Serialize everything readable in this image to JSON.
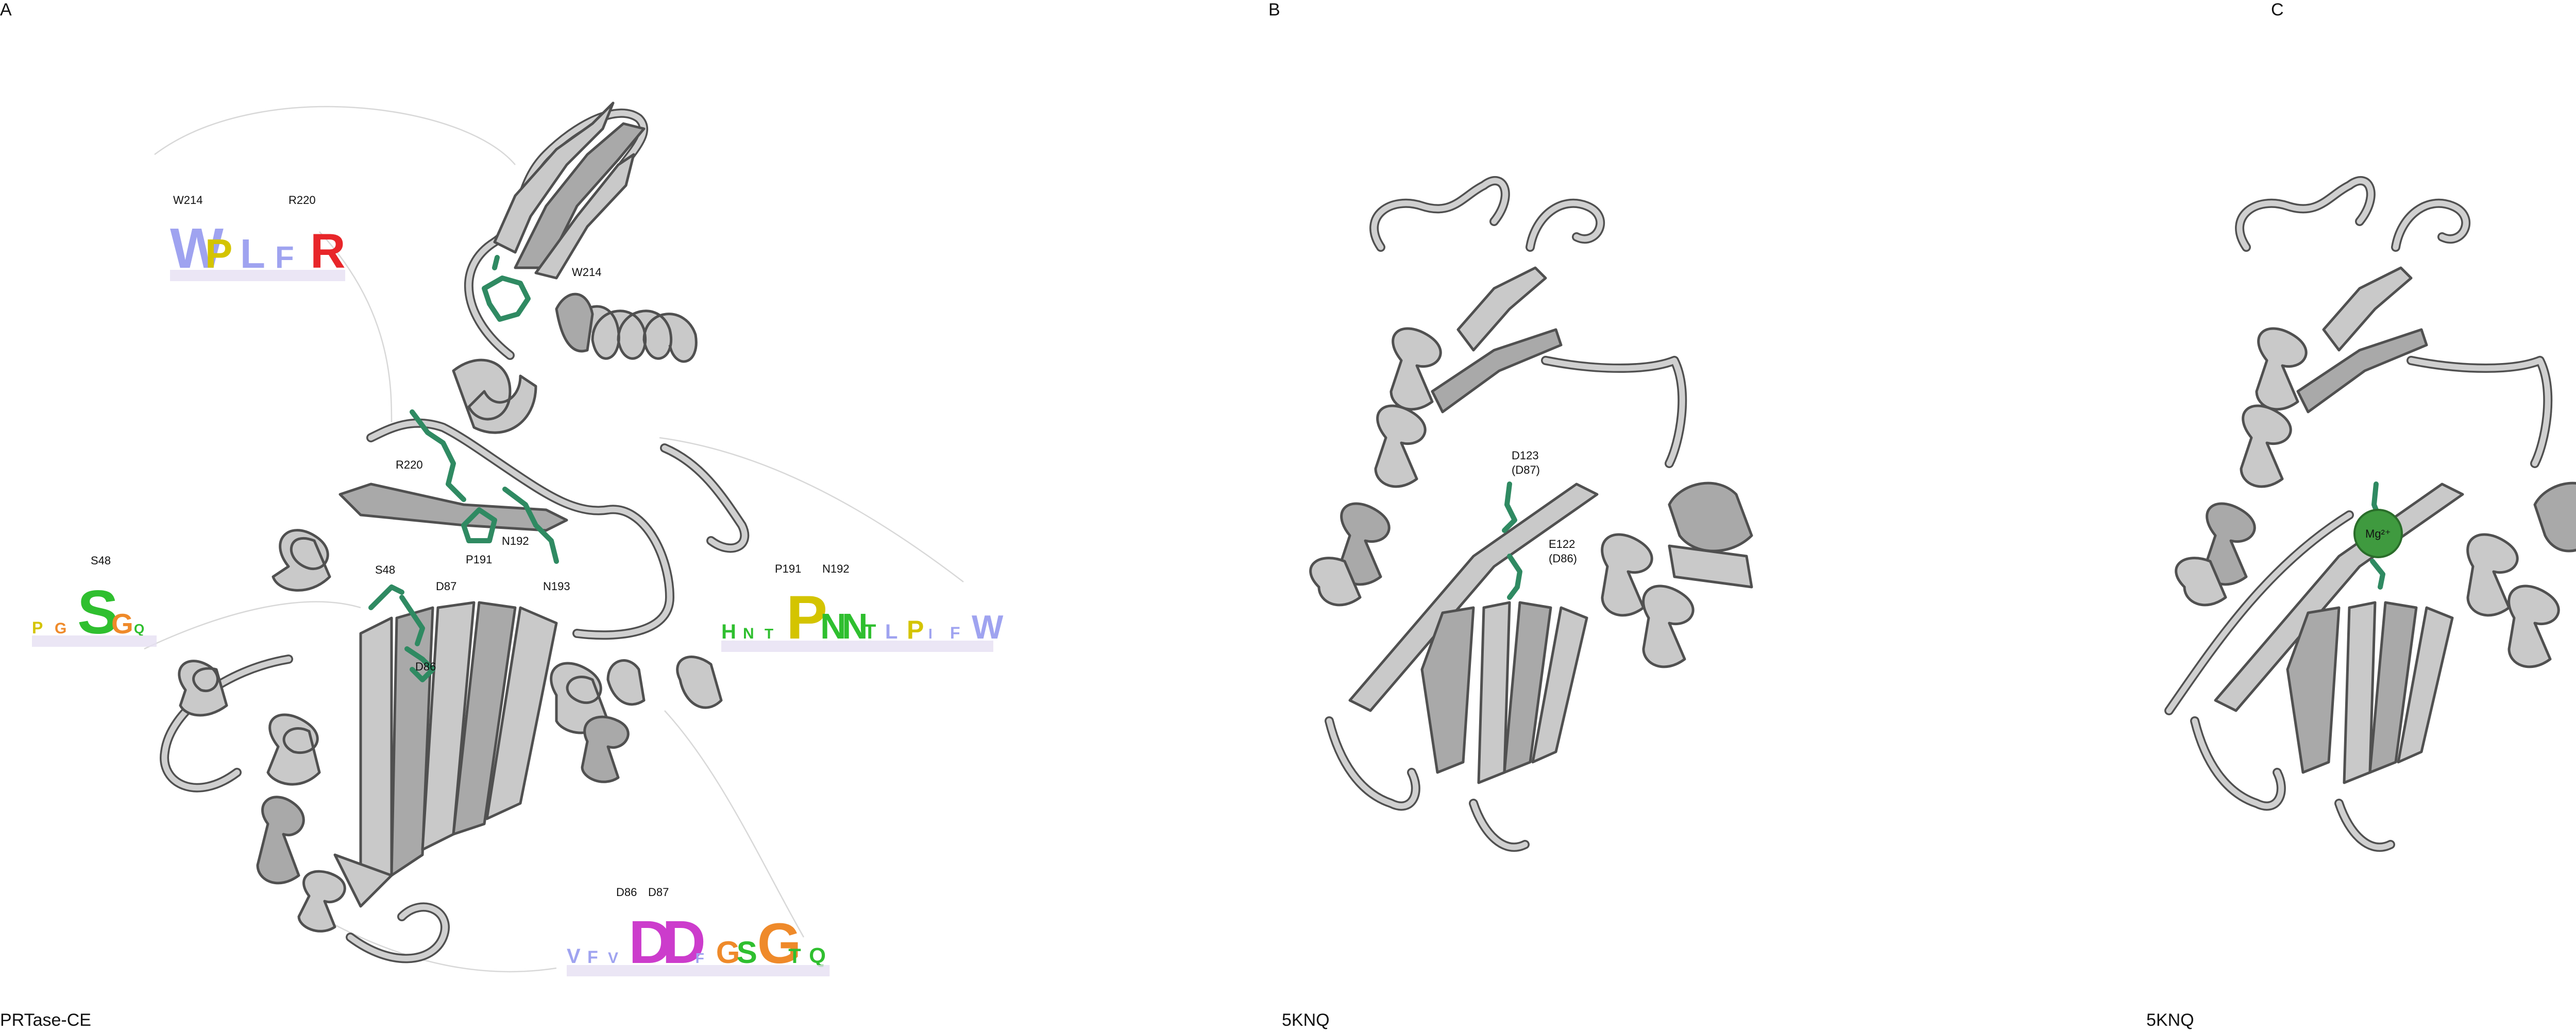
{
  "panels": [
    {
      "letter": "A",
      "label": "PRTase-CE"
    },
    {
      "letter": "B",
      "label": "5KNQ"
    },
    {
      "letter": "C",
      "label": "5KNQ"
    }
  ],
  "panel_a_residues": [
    "W214",
    "R220",
    "N192",
    "P191",
    "N193",
    "S48",
    "D87",
    "D86"
  ],
  "panel_b_residues": [
    "D123",
    "(D87)",
    "E122",
    "(D86)"
  ],
  "panel_c_ion": "Mg²⁺",
  "logos": [
    {
      "id": "w214-r220",
      "headers": [
        "W214",
        "R220"
      ],
      "letters": [
        {
          "t": "W",
          "c": "#9fa3f0"
        },
        {
          "t": "P",
          "c": "#d4c400"
        },
        {
          "t": "L",
          "c": "#9fa3f0"
        },
        {
          "t": "F",
          "c": "#9fa3f0"
        },
        {
          "t": "R",
          "c": "#e8262a"
        }
      ]
    },
    {
      "id": "s48",
      "headers": [
        "S48"
      ],
      "letters": [
        {
          "t": "P",
          "c": "#d4c400"
        },
        {
          "t": "G",
          "c": "#ef8a2a"
        },
        {
          "t": "S",
          "c": "#2fbf2f"
        },
        {
          "t": "G",
          "c": "#ef8a2a"
        },
        {
          "t": "Q",
          "c": "#2fbf2f"
        }
      ]
    },
    {
      "id": "p191-n192",
      "headers": [
        "P191",
        "N192"
      ],
      "letters": [
        {
          "t": "H",
          "c": "#2fbf2f"
        },
        {
          "t": "N",
          "c": "#2fbf2f"
        },
        {
          "t": "T",
          "c": "#2fbf2f"
        },
        {
          "t": "P",
          "c": "#d4c400"
        },
        {
          "t": "N",
          "c": "#2fbf2f"
        },
        {
          "t": "N",
          "c": "#2fbf2f"
        },
        {
          "t": "T",
          "c": "#2fbf2f"
        },
        {
          "t": "L",
          "c": "#9fa3f0"
        },
        {
          "t": "P",
          "c": "#d4c400"
        },
        {
          "t": "I",
          "c": "#9fa3f0"
        },
        {
          "t": "F",
          "c": "#9fa3f0"
        },
        {
          "t": "W",
          "c": "#9fa3f0"
        }
      ]
    },
    {
      "id": "d86-d87",
      "headers": [
        "D86",
        "D87"
      ],
      "letters": [
        {
          "t": "V",
          "c": "#9fa3f0"
        },
        {
          "t": "F",
          "c": "#9fa3f0"
        },
        {
          "t": "V",
          "c": "#9fa3f0"
        },
        {
          "t": "D",
          "c": "#cc3ccc"
        },
        {
          "t": "D",
          "c": "#cc3ccc"
        },
        {
          "t": "F",
          "c": "#9fa3f0"
        },
        {
          "t": "G",
          "c": "#ef8a2a"
        },
        {
          "t": "S",
          "c": "#2fbf2f"
        },
        {
          "t": "G",
          "c": "#ef8a2a"
        },
        {
          "t": "T",
          "c": "#2fbf2f"
        },
        {
          "t": "Q",
          "c": "#2fbf2f"
        }
      ]
    }
  ]
}
